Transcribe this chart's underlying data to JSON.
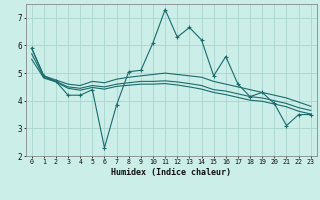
{
  "xlabel": "Humidex (Indice chaleur)",
  "background_color": "#cceee8",
  "grid_color": "#aad4ce",
  "line_color": "#1a6b6b",
  "xlim": [
    -0.5,
    23.5
  ],
  "ylim": [
    2,
    7.5
  ],
  "yticks": [
    2,
    3,
    4,
    5,
    6,
    7
  ],
  "xticks": [
    0,
    1,
    2,
    3,
    4,
    5,
    6,
    7,
    8,
    9,
    10,
    11,
    12,
    13,
    14,
    15,
    16,
    17,
    18,
    19,
    20,
    21,
    22,
    23
  ],
  "x": [
    0,
    1,
    2,
    3,
    4,
    5,
    6,
    7,
    8,
    9,
    10,
    11,
    12,
    13,
    14,
    15,
    16,
    17,
    18,
    19,
    20,
    21,
    22,
    23
  ],
  "line1": [
    5.9,
    4.9,
    4.7,
    4.2,
    4.2,
    4.4,
    2.3,
    3.85,
    5.05,
    5.1,
    6.1,
    7.3,
    6.3,
    6.65,
    6.2,
    4.9,
    5.6,
    4.6,
    4.15,
    4.3,
    3.9,
    3.1,
    3.5,
    3.5
  ],
  "line2": [
    5.9,
    4.9,
    4.75,
    4.6,
    4.55,
    4.7,
    4.65,
    4.78,
    4.85,
    4.9,
    4.95,
    5.0,
    4.95,
    4.9,
    4.85,
    4.7,
    4.6,
    4.5,
    4.4,
    4.3,
    4.2,
    4.1,
    3.95,
    3.8
  ],
  "line3": [
    5.7,
    4.85,
    4.7,
    4.5,
    4.45,
    4.55,
    4.5,
    4.6,
    4.65,
    4.7,
    4.7,
    4.72,
    4.68,
    4.62,
    4.55,
    4.4,
    4.35,
    4.25,
    4.15,
    4.1,
    4.0,
    3.9,
    3.75,
    3.65
  ],
  "line4": [
    5.5,
    4.82,
    4.68,
    4.45,
    4.38,
    4.48,
    4.42,
    4.52,
    4.56,
    4.6,
    4.6,
    4.62,
    4.57,
    4.5,
    4.42,
    4.3,
    4.22,
    4.12,
    4.02,
    3.98,
    3.88,
    3.78,
    3.62,
    3.52
  ]
}
